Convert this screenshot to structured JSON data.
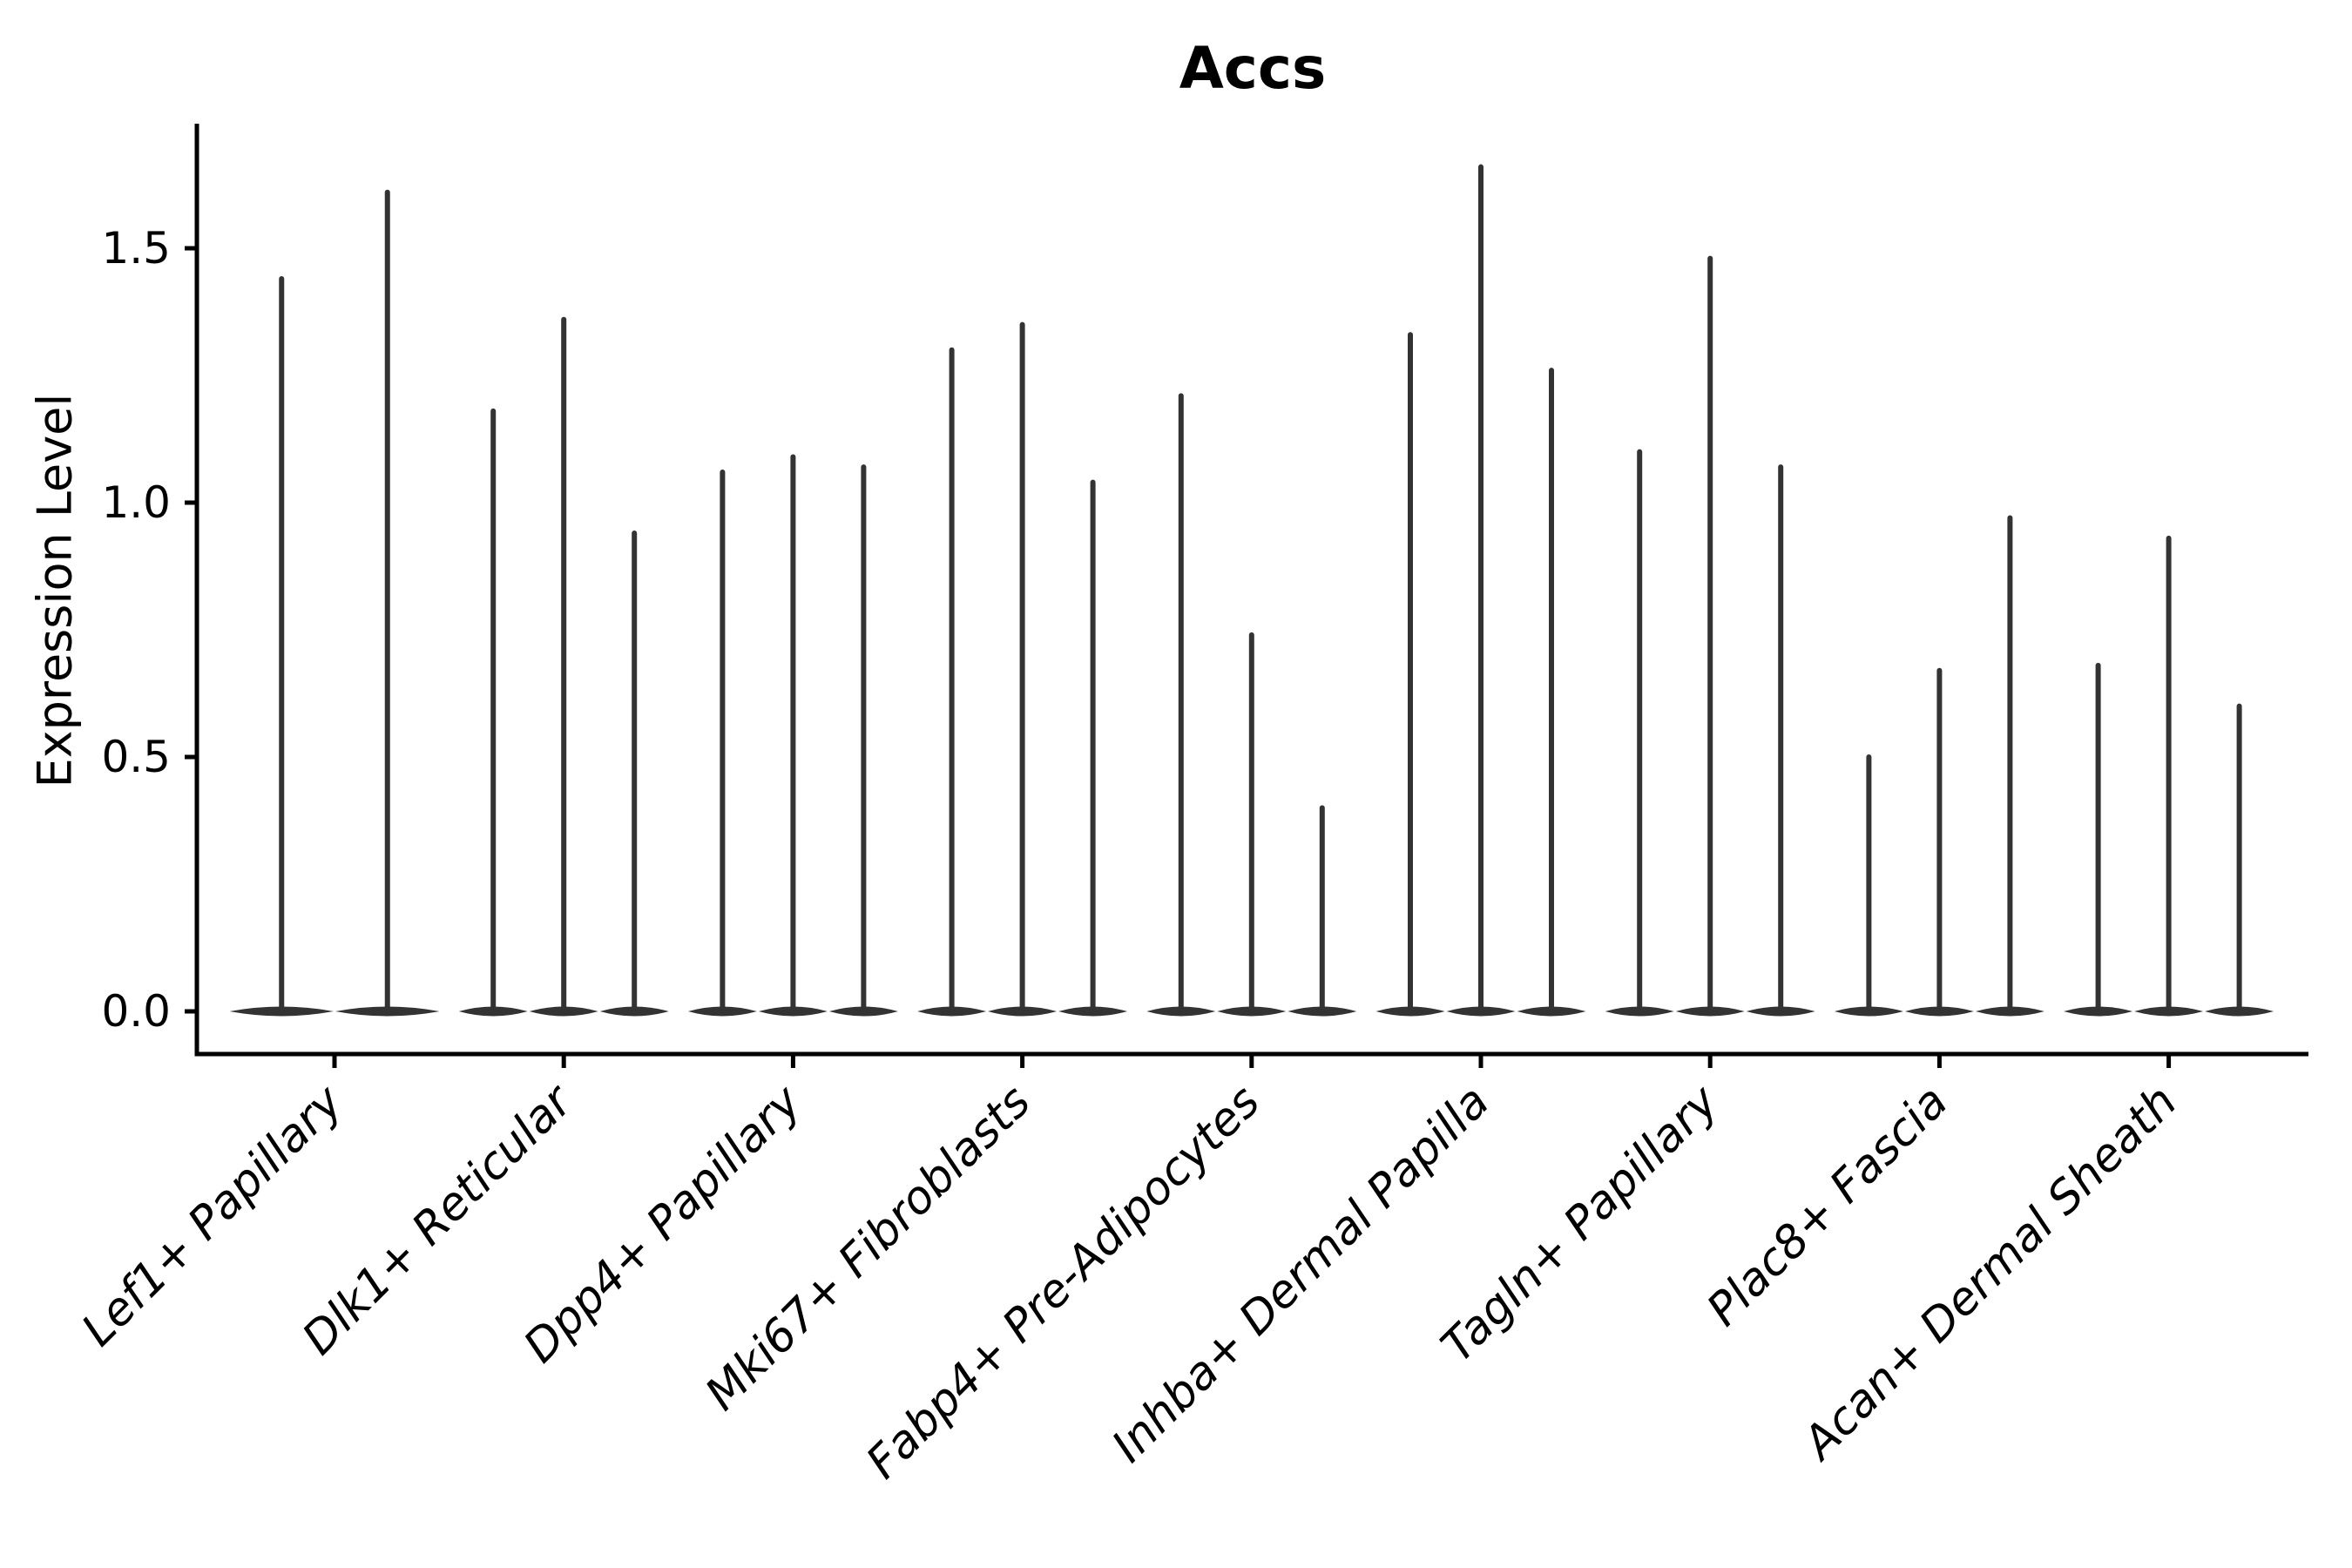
{
  "chart_data": {
    "type": "violin",
    "title": "Accs",
    "xlabel": "",
    "ylabel": "Expression Level",
    "yticks": [
      "0.0",
      "0.5",
      "1.0",
      "1.5"
    ],
    "ylim": [
      -0.08,
      1.74
    ],
    "grid": false,
    "legend": "none",
    "categories": [
      "Lef1+ Papillary",
      "Dlk1+ Reticular",
      "Dpp4+ Papillary",
      "Mki67+ Fibroblasts",
      "Fabp4+ Pre-Adipocytes",
      "Inhba+ Dermal Papilla",
      "Tagln+ Papillary",
      "Plac8+ Fascia",
      "Acan+ Dermal Sheath"
    ],
    "groups": [
      {
        "category": "Lef1+ Papillary",
        "violin_peaks": [
          1.44,
          1.61
        ]
      },
      {
        "category": "Dlk1+ Reticular",
        "violin_peaks": [
          1.18,
          1.36,
          0.94
        ]
      },
      {
        "category": "Dpp4+ Papillary",
        "violin_peaks": [
          1.06,
          1.09,
          1.07
        ]
      },
      {
        "category": "Mki67+ Fibroblasts",
        "violin_peaks": [
          1.3,
          1.35,
          1.04
        ]
      },
      {
        "category": "Fabp4+ Pre-Adipocytes",
        "violin_peaks": [
          1.21,
          0.74,
          0.4
        ]
      },
      {
        "category": "Inhba+ Dermal Papilla",
        "violin_peaks": [
          1.33,
          1.66,
          1.26
        ]
      },
      {
        "category": "Tagln+ Papillary",
        "violin_peaks": [
          1.1,
          1.48,
          1.07
        ]
      },
      {
        "category": "Plac8+ Fascia",
        "violin_peaks": [
          0.5,
          0.67,
          0.97
        ]
      },
      {
        "category": "Acan+ Dermal Sheath",
        "violin_peaks": [
          0.68,
          0.93,
          0.6
        ]
      }
    ],
    "style": {
      "violin_color": "#333333",
      "axis_color": "#000000",
      "background": "#ffffff"
    }
  }
}
